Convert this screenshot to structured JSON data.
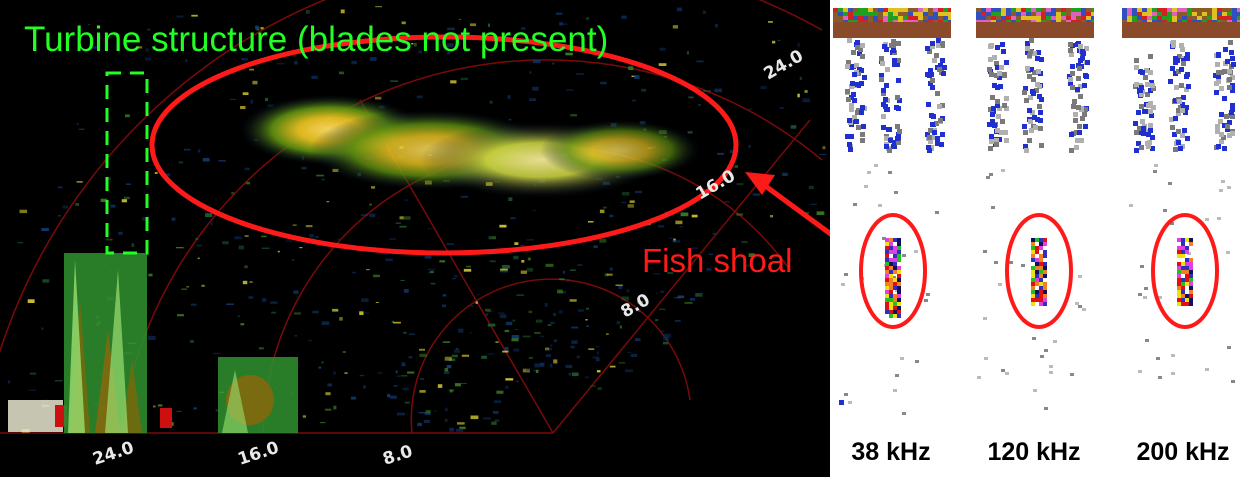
{
  "annotations": {
    "turbine_label": "Turbine structure (blades not present)",
    "shoal_label": "Fish shoal"
  },
  "sonar": {
    "range_labels_bottom": [
      "24.0",
      "16.0",
      "8.0"
    ],
    "range_labels_arc": [
      "24.0",
      "16.0",
      "8.0"
    ]
  },
  "echograms": [
    {
      "label": "38 kHz"
    },
    {
      "label": "120 kHz"
    },
    {
      "label": "200 kHz"
    }
  ],
  "colors": {
    "annotation_turbine": "#22ff22",
    "annotation_shoal": "#ff1a1a",
    "range_ring": "#8b0000",
    "sonar_background": "#000000",
    "echogram_background": "#ffffff"
  }
}
